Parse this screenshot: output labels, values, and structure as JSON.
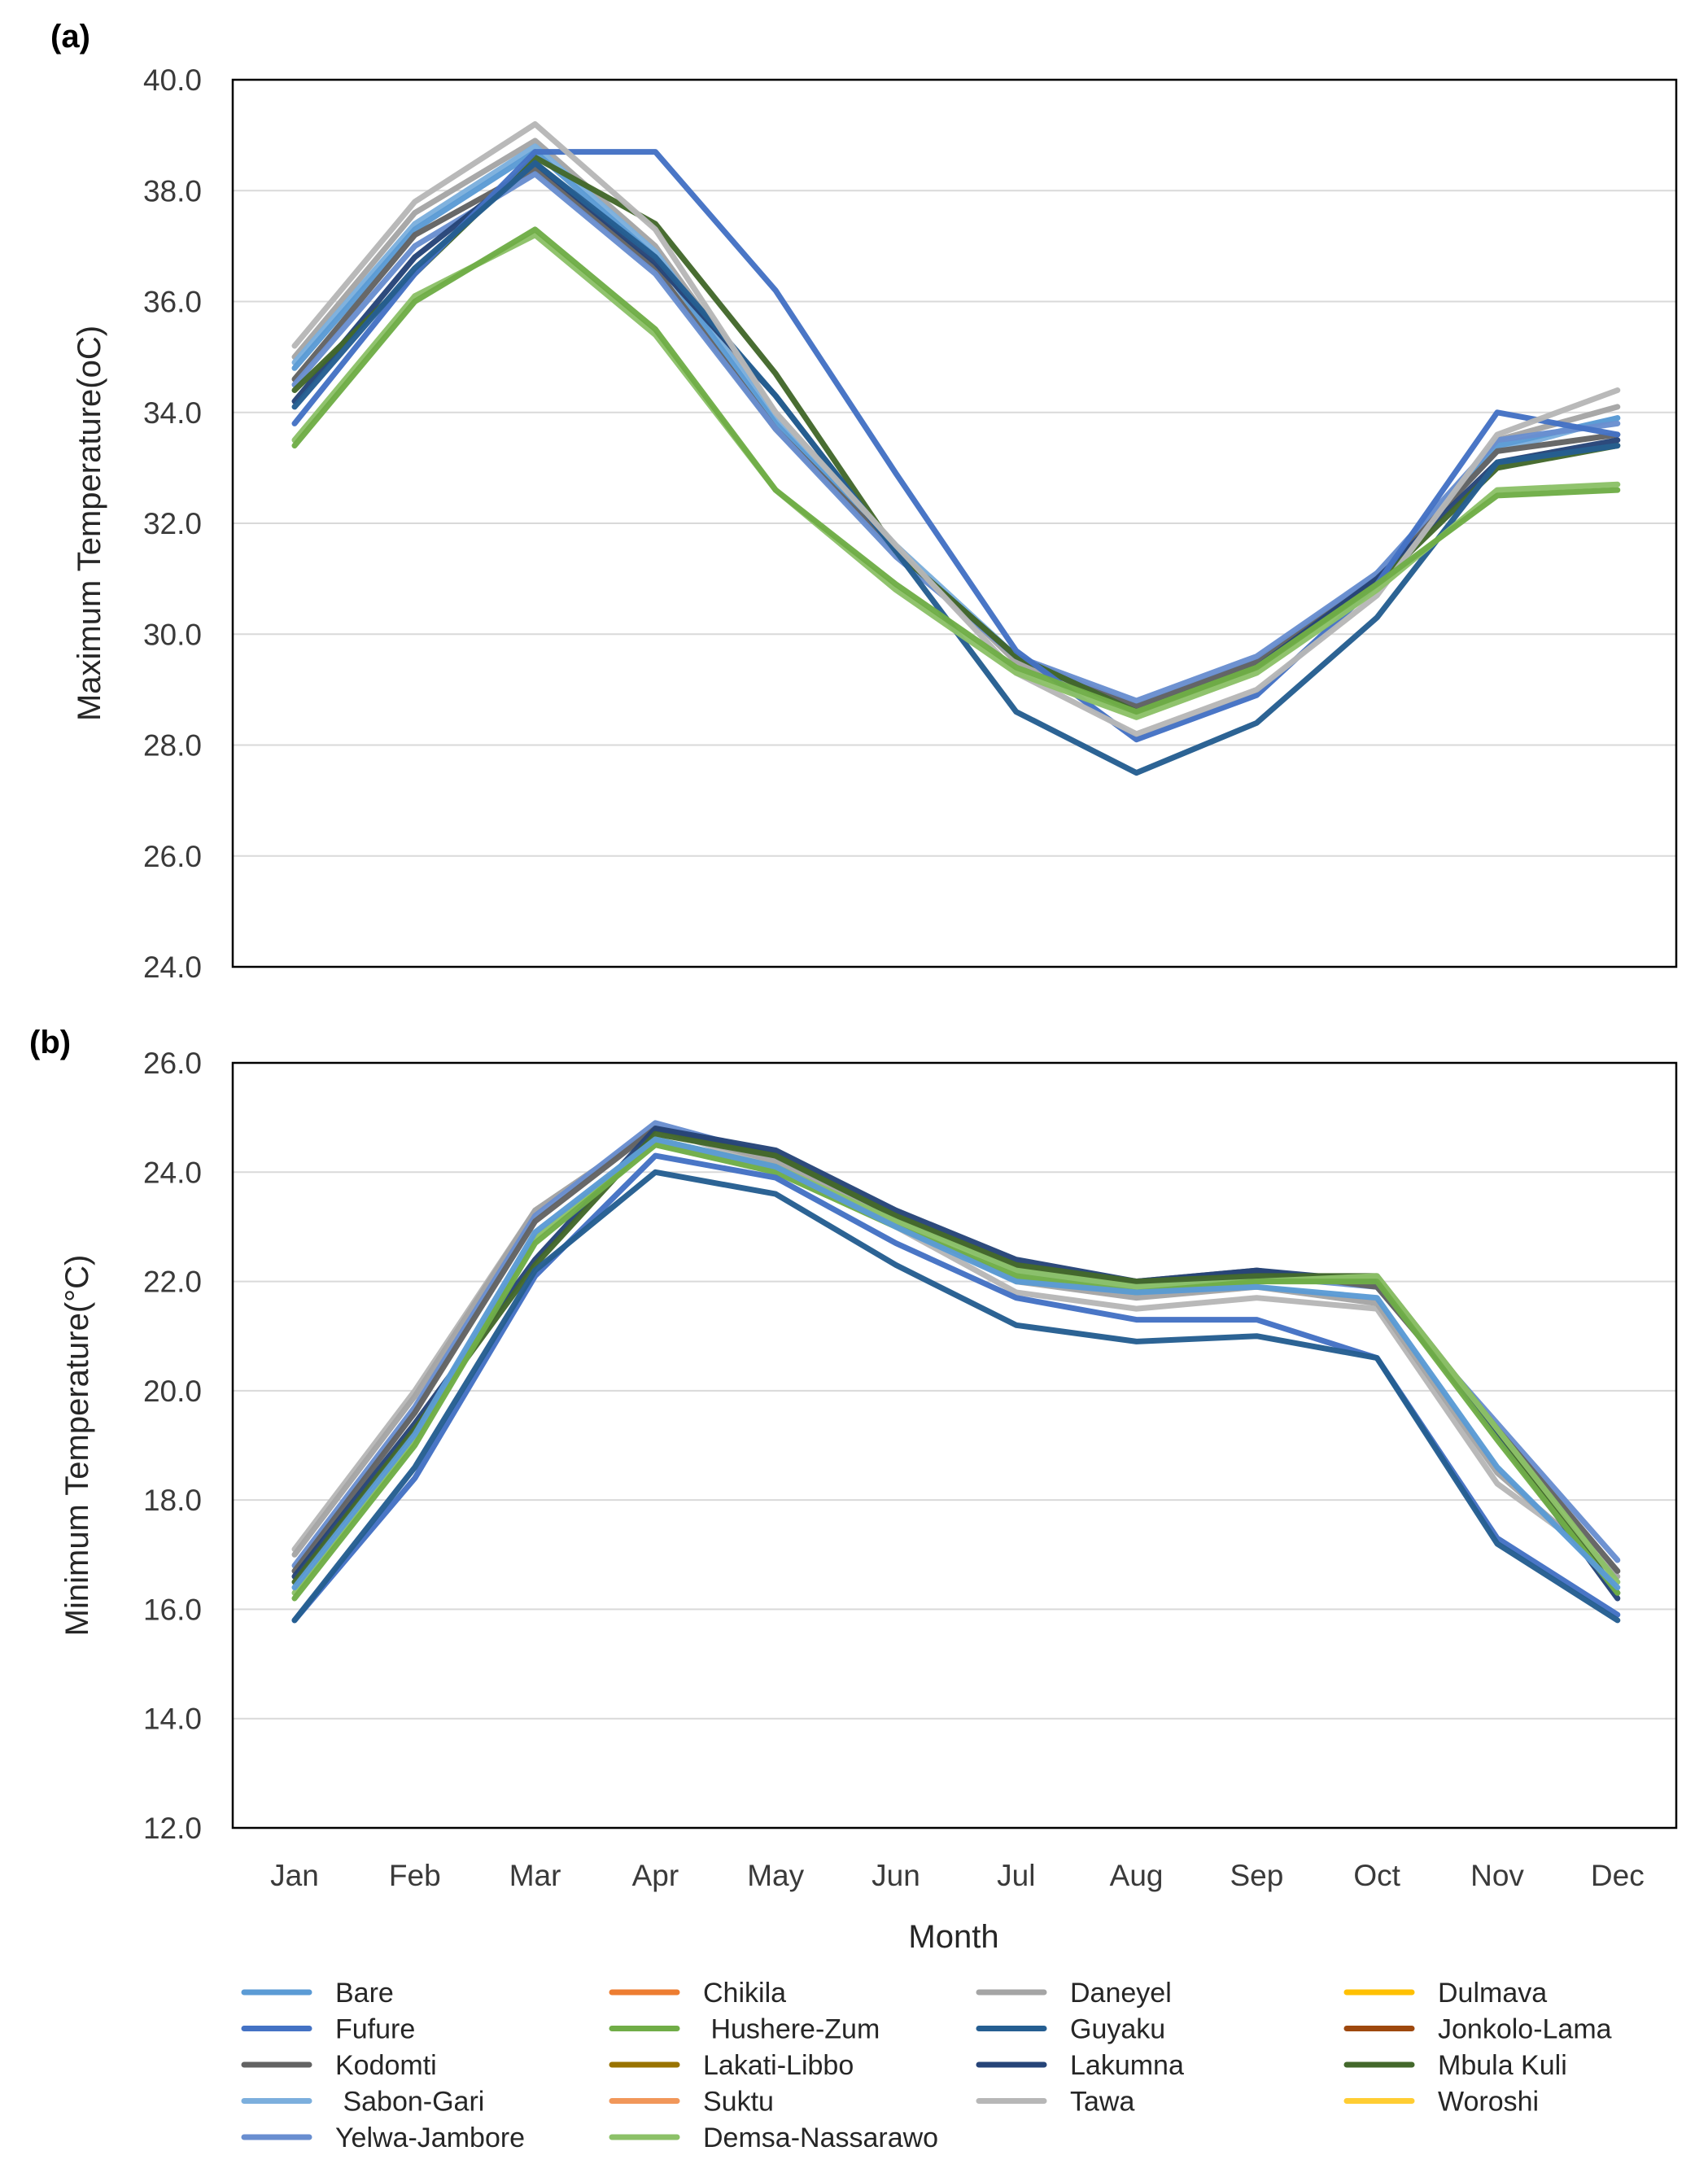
{
  "colors": {
    "Bare": "#5b9bd5",
    "Chikila": "#ed7d31",
    "Daneyel": "#a5a5a5",
    "Dulmava": "#ffc000",
    "Fufure": "#4472c4",
    "Hushere-Zum": "#70ad47",
    "Guyaku": "#255e91",
    "Jonkolo-Lama": "#9e480e",
    "Kodomti": "#636363",
    "Lakati-Libbo": "#997300",
    "Lakumna": "#264478",
    "Mbula Kuli": "#43682b",
    "Sabon-Gari": "#7cafdd",
    "Suktu": "#f1975a",
    "Tawa": "#b7b7b7",
    "Woroshi": "#ffcd33",
    "Yelwa-Jambore": "#698ed0",
    "Demsa-Nassarawo": "#8cc168"
  },
  "legend": {
    "items": [
      "Bare",
      "Chikila",
      "Daneyel",
      "Dulmava",
      "Fufure",
      " Hushere-Zum",
      "Guyaku",
      "Jonkolo-Lama",
      "Kodomti",
      "Lakati-Libbo",
      "Lakumna",
      "Mbula Kuli",
      " Sabon-Gari",
      "Suktu",
      "Tawa",
      "Woroshi",
      "Yelwa-Jambore",
      "Demsa-Nassarawo"
    ]
  },
  "chart_data": [
    {
      "type": "line",
      "panel_label": "(a)",
      "title": "",
      "xlabel": "",
      "ylabel": "Maximum Temperature(oC)",
      "ylim": [
        24.0,
        40.0
      ],
      "yticks": [
        "24.0",
        "26.0",
        "28.0",
        "30.0",
        "32.0",
        "34.0",
        "36.0",
        "38.0",
        "40.0"
      ],
      "categories": [
        "Jan",
        "Feb",
        "Mar",
        "Apr",
        "May",
        "Jun",
        "Jul",
        "Aug",
        "Sep",
        "Oct",
        "Nov",
        "Dec"
      ],
      "grid": true,
      "series": [
        {
          "name": "Daneyel",
          "values": [
            35.0,
            37.6,
            38.9,
            37.0,
            34.0,
            31.6,
            29.5,
            28.7,
            29.5,
            31.0,
            33.5,
            34.1
          ]
        },
        {
          "name": "Sabon-Gari",
          "values": [
            34.9,
            37.4,
            38.8,
            36.9,
            33.9,
            31.6,
            29.6,
            28.7,
            29.5,
            31.1,
            33.3,
            33.9
          ]
        },
        {
          "name": "Bare",
          "values": [
            34.8,
            37.3,
            38.7,
            36.8,
            33.8,
            31.5,
            29.6,
            28.7,
            29.5,
            31.1,
            33.4,
            33.9
          ]
        },
        {
          "name": "Kodomti",
          "values": [
            34.6,
            37.2,
            38.4,
            36.6,
            33.7,
            31.5,
            29.6,
            28.7,
            29.5,
            31.0,
            33.3,
            33.6
          ]
        },
        {
          "name": "Yelwa-Jambore",
          "values": [
            34.5,
            37.0,
            38.3,
            36.5,
            33.7,
            31.4,
            29.6,
            28.8,
            29.6,
            31.1,
            33.5,
            33.8
          ]
        },
        {
          "name": "Lakumna",
          "values": [
            34.2,
            36.8,
            38.5,
            36.7,
            34.3,
            31.5,
            29.6,
            28.6,
            29.4,
            31.0,
            33.1,
            33.5
          ]
        },
        {
          "name": "Mbula Kuli",
          "values": [
            34.4,
            36.5,
            38.6,
            37.4,
            34.7,
            31.5,
            29.6,
            28.6,
            29.4,
            30.9,
            33.0,
            33.4
          ]
        },
        {
          "name": "Fufure",
          "values": [
            33.8,
            36.5,
            38.7,
            38.7,
            36.2,
            32.9,
            29.7,
            28.1,
            28.9,
            30.9,
            34.0,
            33.6
          ]
        },
        {
          "name": "Guyaku",
          "values": [
            34.1,
            36.6,
            38.5,
            36.8,
            34.3,
            31.5,
            28.6,
            27.5,
            28.4,
            30.3,
            33.1,
            33.4
          ]
        },
        {
          "name": "Tawa",
          "values": [
            35.2,
            37.8,
            39.2,
            37.3,
            34.0,
            31.6,
            29.3,
            28.2,
            29.0,
            30.7,
            33.6,
            34.4
          ]
        },
        {
          "name": "Demsa-Nassarawo",
          "values": [
            33.5,
            36.1,
            37.2,
            35.4,
            32.6,
            30.8,
            29.3,
            28.5,
            29.3,
            30.8,
            32.6,
            32.7
          ]
        },
        {
          "name": "Hushere-Zum",
          "values": [
            33.4,
            36.0,
            37.3,
            35.5,
            32.6,
            30.9,
            29.4,
            28.6,
            29.4,
            30.9,
            32.5,
            32.6
          ]
        }
      ]
    },
    {
      "type": "line",
      "panel_label": "(b)",
      "title": "",
      "xlabel": "Month",
      "ylabel": "Minimum Temperature(°C)",
      "ylim": [
        12.0,
        26.0
      ],
      "yticks": [
        "12.0",
        "14.0",
        "16.0",
        "18.0",
        "20.0",
        "22.0",
        "24.0",
        "26.0"
      ],
      "categories": [
        "Jan",
        "Feb",
        "Mar",
        "Apr",
        "May",
        "Jun",
        "Jul",
        "Aug",
        "Sep",
        "Oct",
        "Nov",
        "Dec"
      ],
      "grid": true,
      "series": [
        {
          "name": "Tawa",
          "values": [
            17.1,
            20.0,
            23.3,
            24.8,
            24.1,
            23.0,
            21.8,
            21.5,
            21.7,
            21.5,
            18.3,
            16.7
          ]
        },
        {
          "name": "Daneyel",
          "values": [
            17.0,
            19.9,
            23.3,
            24.8,
            24.2,
            23.1,
            22.0,
            21.7,
            21.9,
            21.6,
            18.5,
            16.6
          ]
        },
        {
          "name": "Yelwa-Jambore",
          "values": [
            16.8,
            19.7,
            23.2,
            24.9,
            24.3,
            23.2,
            22.2,
            21.9,
            22.1,
            21.9,
            19.4,
            16.9
          ]
        },
        {
          "name": "Kodomti",
          "values": [
            16.7,
            19.6,
            23.1,
            24.8,
            24.3,
            23.2,
            22.3,
            22.0,
            22.2,
            21.9,
            19.3,
            16.7
          ]
        },
        {
          "name": "Lakumna",
          "values": [
            16.6,
            19.4,
            22.4,
            24.8,
            24.4,
            23.3,
            22.4,
            22.0,
            22.2,
            22.0,
            19.2,
            16.2
          ]
        },
        {
          "name": "Mbula Kuli",
          "values": [
            16.5,
            19.3,
            22.3,
            24.7,
            24.3,
            23.2,
            22.3,
            22.0,
            22.1,
            22.1,
            19.3,
            16.3
          ]
        },
        {
          "name": "Demsa-Nassarawo",
          "values": [
            16.3,
            19.1,
            22.8,
            24.6,
            24.1,
            23.1,
            22.2,
            21.9,
            22.0,
            22.1,
            19.3,
            16.5
          ]
        },
        {
          "name": "Hushere-Zum",
          "values": [
            16.2,
            19.0,
            22.7,
            24.5,
            24.0,
            23.0,
            22.1,
            21.8,
            22.0,
            22.0,
            19.1,
            16.3
          ]
        },
        {
          "name": "Bare",
          "values": [
            16.4,
            19.2,
            22.9,
            24.6,
            24.1,
            23.0,
            22.0,
            21.8,
            21.9,
            21.7,
            18.6,
            16.4
          ]
        },
        {
          "name": "Fufure",
          "values": [
            15.8,
            18.4,
            22.1,
            24.3,
            23.9,
            22.7,
            21.7,
            21.3,
            21.3,
            20.6,
            17.3,
            15.9
          ]
        },
        {
          "name": "Guyaku",
          "values": [
            15.8,
            18.6,
            22.2,
            24.0,
            23.6,
            22.3,
            21.2,
            20.9,
            21.0,
            20.6,
            17.2,
            15.8
          ]
        }
      ]
    }
  ]
}
